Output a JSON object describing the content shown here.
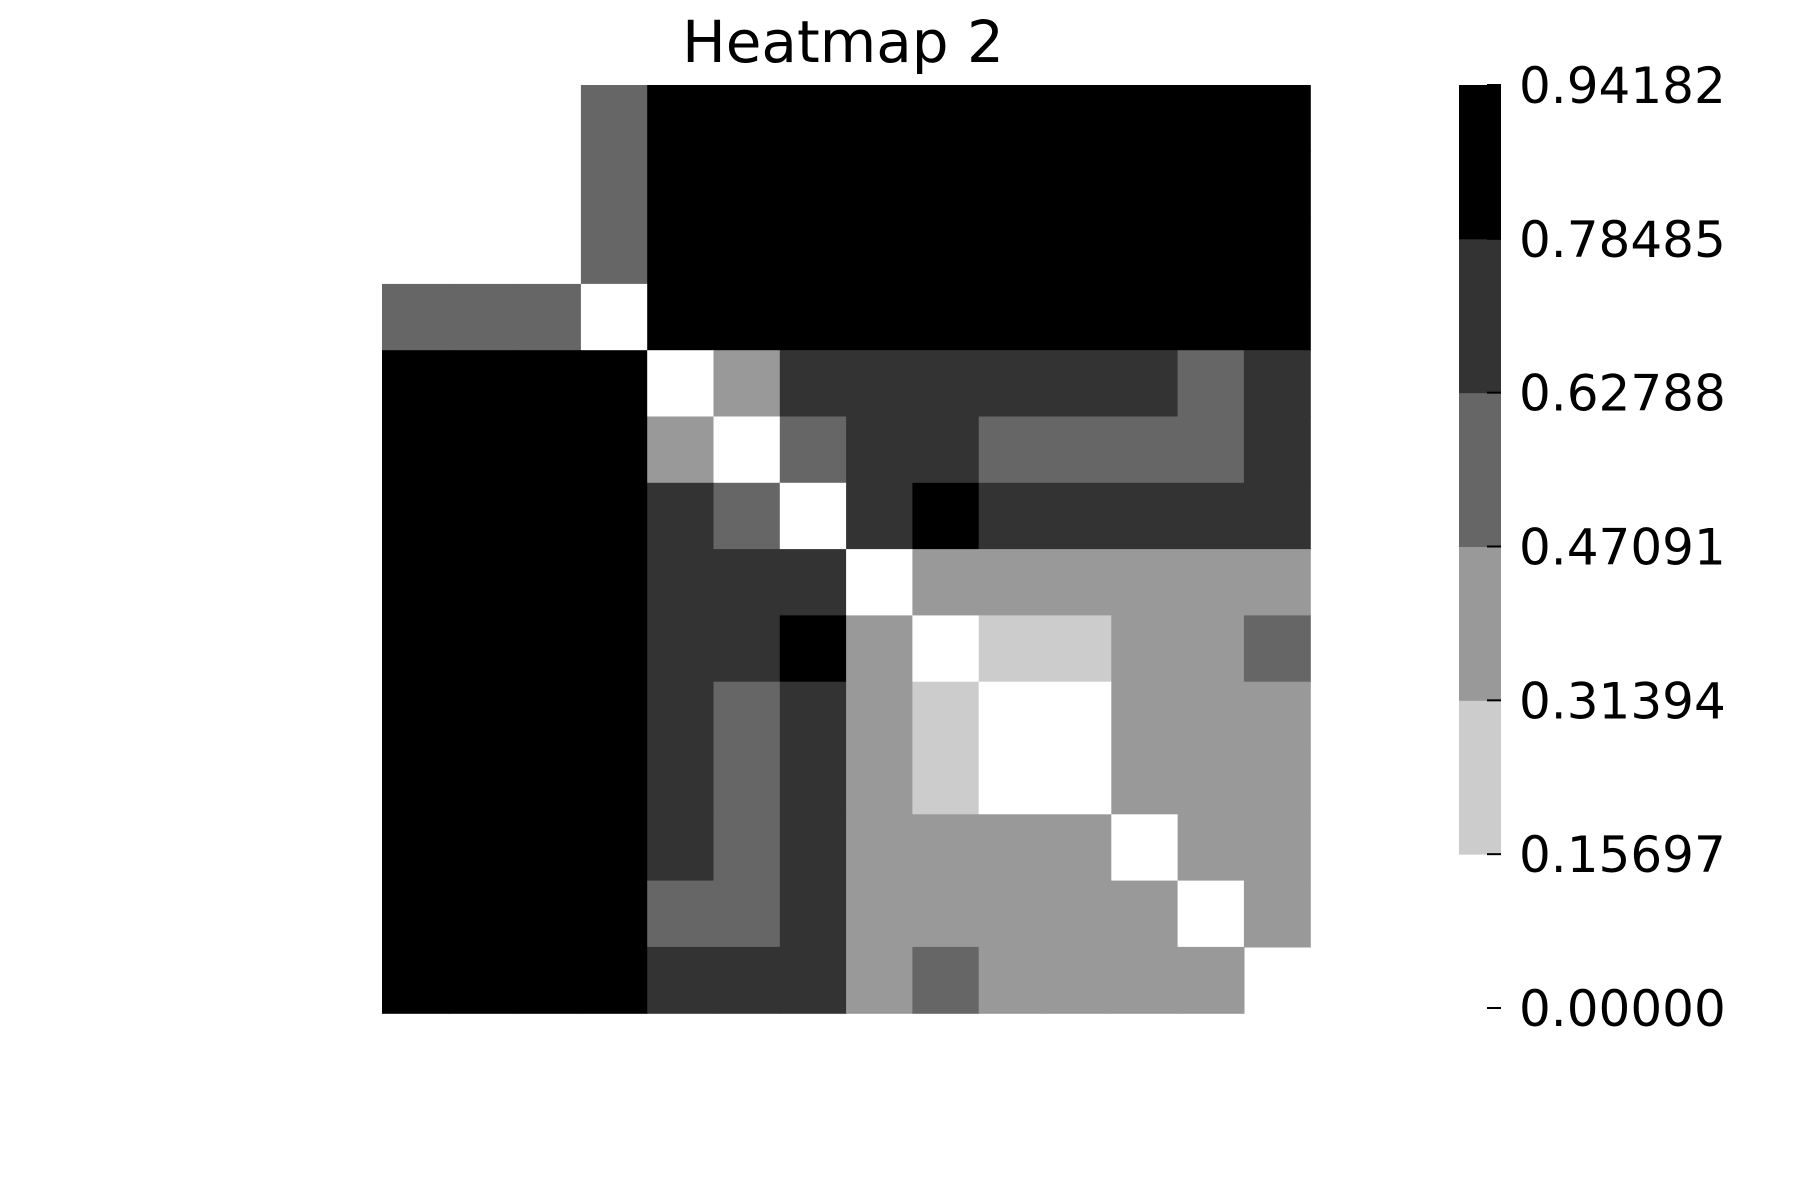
{
  "chart_data": {
    "type": "heatmap",
    "title": "Heatmap 2",
    "xlabel": "",
    "ylabel": "",
    "grid": false,
    "legend": "colorbar-right",
    "n_rows": 14,
    "n_cols": 14,
    "matrix": [
      [
        null,
        null,
        null,
        0.55,
        0.87,
        0.87,
        0.87,
        0.87,
        0.87,
        0.87,
        0.87,
        0.87,
        0.87,
        0.87
      ],
      [
        null,
        null,
        null,
        0.55,
        0.87,
        0.87,
        0.87,
        0.87,
        0.87,
        0.87,
        0.87,
        0.87,
        0.87,
        0.87
      ],
      [
        null,
        null,
        null,
        0.55,
        0.87,
        0.87,
        0.87,
        0.87,
        0.87,
        0.87,
        0.87,
        0.87,
        0.87,
        0.87
      ],
      [
        0.55,
        0.55,
        0.55,
        0.0,
        0.87,
        0.87,
        0.87,
        0.87,
        0.87,
        0.87,
        0.87,
        0.87,
        0.87,
        0.87
      ],
      [
        0.87,
        0.87,
        0.87,
        0.87,
        0.0,
        0.39,
        0.71,
        0.71,
        0.71,
        0.71,
        0.71,
        0.71,
        0.55,
        0.71
      ],
      [
        0.87,
        0.87,
        0.87,
        0.87,
        0.39,
        0.0,
        0.55,
        0.71,
        0.71,
        0.55,
        0.55,
        0.55,
        0.55,
        0.71
      ],
      [
        0.87,
        0.87,
        0.87,
        0.87,
        0.71,
        0.55,
        0.0,
        0.71,
        0.87,
        0.71,
        0.71,
        0.71,
        0.71,
        0.71
      ],
      [
        0.87,
        0.87,
        0.87,
        0.87,
        0.71,
        0.71,
        0.71,
        0.0,
        0.39,
        0.39,
        0.39,
        0.39,
        0.39,
        0.39
      ],
      [
        0.87,
        0.87,
        0.87,
        0.87,
        0.71,
        0.71,
        0.87,
        0.39,
        0.0,
        0.24,
        0.24,
        0.39,
        0.39,
        0.55
      ],
      [
        0.87,
        0.87,
        0.87,
        0.87,
        0.71,
        0.55,
        0.71,
        0.39,
        0.24,
        0.0,
        0.0,
        0.39,
        0.39,
        0.39
      ],
      [
        0.87,
        0.87,
        0.87,
        0.87,
        0.71,
        0.55,
        0.71,
        0.39,
        0.24,
        0.0,
        0.0,
        0.39,
        0.39,
        0.39
      ],
      [
        0.87,
        0.87,
        0.87,
        0.87,
        0.71,
        0.55,
        0.71,
        0.39,
        0.39,
        0.39,
        0.39,
        0.0,
        0.39,
        0.39
      ],
      [
        0.87,
        0.87,
        0.87,
        0.87,
        0.55,
        0.55,
        0.71,
        0.39,
        0.39,
        0.39,
        0.39,
        0.39,
        0.0,
        0.39
      ],
      [
        0.87,
        0.87,
        0.87,
        0.87,
        0.71,
        0.71,
        0.71,
        0.39,
        0.55,
        0.39,
        0.39,
        0.39,
        0.39,
        null
      ]
    ],
    "colorbar": {
      "bins": [
        {
          "lo": 0.15697,
          "hi": 0.31394,
          "color": "#cccccc"
        },
        {
          "lo": 0.31394,
          "hi": 0.47091,
          "color": "#999999"
        },
        {
          "lo": 0.47091,
          "hi": 0.62788,
          "color": "#666666"
        },
        {
          "lo": 0.62788,
          "hi": 0.78485,
          "color": "#333333"
        },
        {
          "lo": 0.78485,
          "hi": 0.94182,
          "color": "#000000"
        }
      ],
      "below_color": "#ffffff",
      "tick_values": [
        0.0,
        0.15697,
        0.31394,
        0.47091,
        0.62788,
        0.78485,
        0.94182
      ],
      "tick_labels": [
        "0.00000",
        "0.15697",
        "0.31394",
        "0.47091",
        "0.62788",
        "0.78485",
        "0.94182"
      ]
    }
  }
}
